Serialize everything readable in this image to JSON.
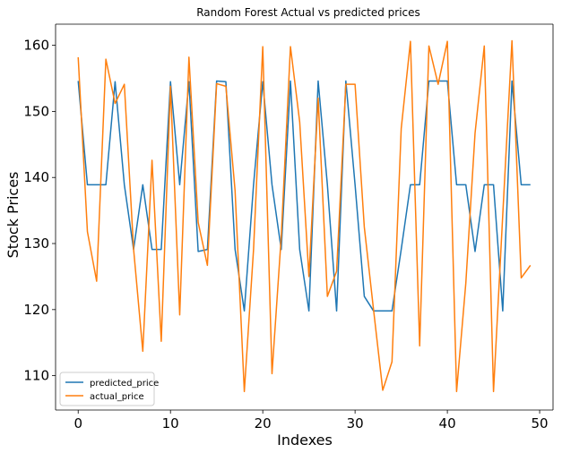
{
  "chart_data": {
    "type": "line",
    "title": "Random Forest Actual vs predicted prices",
    "xlabel": "Indexes",
    "ylabel": "Stock Prices",
    "xlim": [
      -2.45,
      51.45
    ],
    "ylim": [
      104.8,
      163.2
    ],
    "xticks": [
      0,
      10,
      20,
      30,
      40,
      50
    ],
    "yticks": [
      110,
      120,
      130,
      140,
      150,
      160
    ],
    "grid": false,
    "legend_position": "lower-left",
    "x": [
      0,
      1,
      2,
      3,
      4,
      5,
      6,
      7,
      8,
      9,
      10,
      11,
      12,
      13,
      14,
      15,
      16,
      17,
      18,
      19,
      20,
      21,
      22,
      23,
      24,
      25,
      26,
      27,
      28,
      29,
      30,
      31,
      32,
      33,
      34,
      35,
      36,
      37,
      38,
      39,
      40,
      41,
      42,
      43,
      44,
      45,
      46,
      47,
      48,
      49
    ],
    "series": [
      {
        "name": "predicted_price",
        "color": "#1f77b4",
        "values": [
          154.6,
          138.9,
          138.9,
          138.9,
          154.5,
          138.9,
          129.1,
          138.9,
          129.1,
          129.1,
          154.5,
          138.9,
          154.5,
          128.8,
          129.1,
          154.6,
          154.5,
          129.1,
          119.8,
          138.9,
          154.5,
          138.9,
          129.1,
          154.6,
          129.1,
          119.8,
          154.6,
          138.9,
          119.8,
          154.6,
          138.9,
          122.0,
          119.8,
          119.8,
          119.8,
          129.1,
          138.9,
          138.9,
          154.6,
          154.6,
          154.6,
          138.9,
          138.9,
          128.8,
          138.9,
          138.9,
          119.8,
          154.6,
          138.9,
          138.9
        ]
      },
      {
        "name": "actual_price",
        "color": "#ff7f0e",
        "values": [
          158.2,
          131.8,
          124.3,
          157.9,
          151.2,
          154.1,
          129.2,
          113.7,
          142.6,
          115.2,
          153.8,
          119.2,
          158.2,
          133.2,
          126.7,
          154.2,
          153.8,
          138.0,
          107.6,
          129.1,
          159.8,
          110.3,
          131.0,
          159.8,
          148.4,
          125.0,
          152.0,
          122.0,
          125.8,
          154.1,
          154.1,
          132.5,
          120.0,
          107.8,
          112.1,
          147.4,
          160.6,
          114.5,
          159.9,
          154.1,
          160.6,
          107.6,
          124.0,
          146.7,
          159.9,
          107.6,
          134.3,
          160.7,
          124.8,
          126.7
        ]
      }
    ]
  }
}
